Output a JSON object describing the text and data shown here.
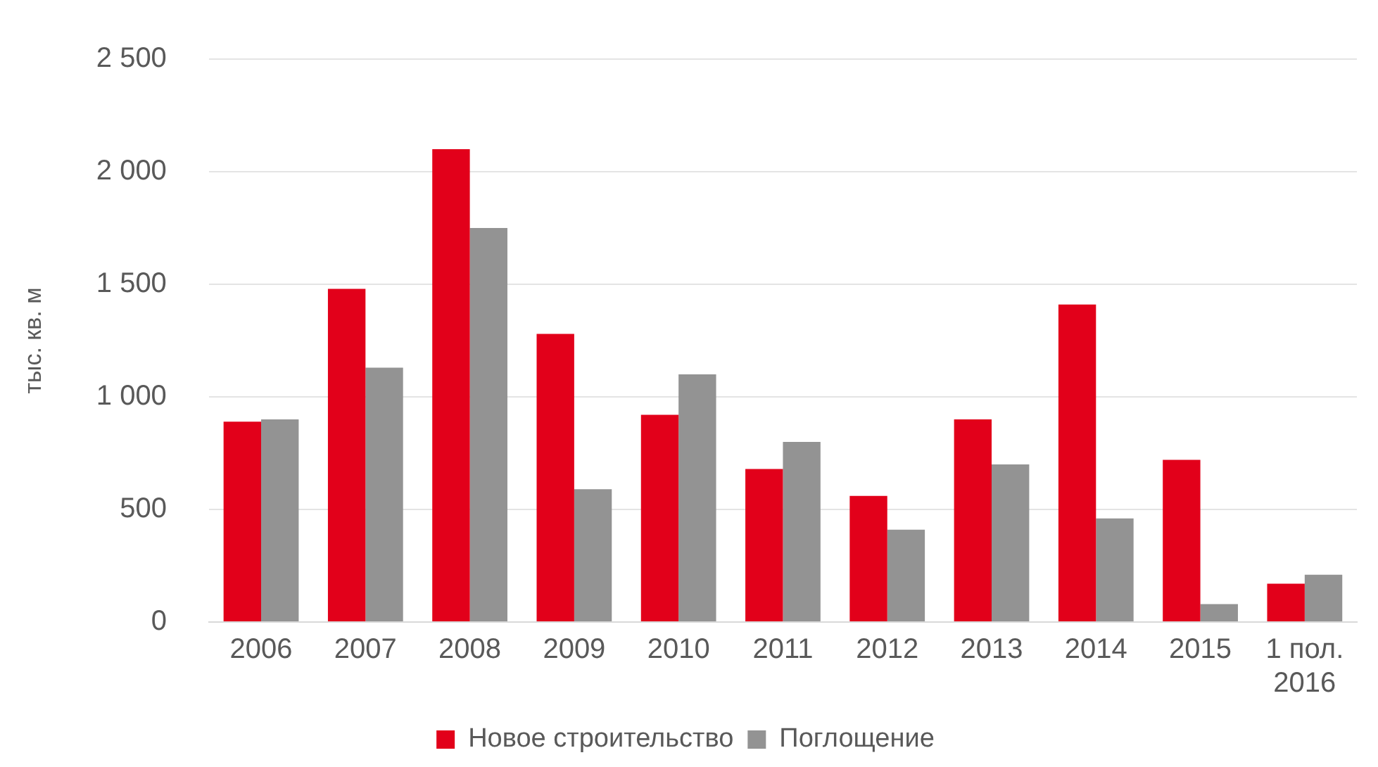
{
  "chart_data": {
    "type": "bar",
    "ylabel": "тыс. кв. м",
    "categories": [
      "2006",
      "2007",
      "2008",
      "2009",
      "2010",
      "2011",
      "2012",
      "2013",
      "2014",
      "2015",
      "1 пол.\n2016"
    ],
    "series": [
      {
        "name": "Новое строительство",
        "color": "#e2001a",
        "values": [
          890,
          1480,
          2100,
          1280,
          920,
          680,
          560,
          900,
          1410,
          720,
          170
        ]
      },
      {
        "name": "Поглощение",
        "color": "#939393",
        "values": [
          900,
          1130,
          1750,
          590,
          1100,
          800,
          410,
          700,
          460,
          80,
          210
        ]
      }
    ],
    "ylim": [
      0,
      2500
    ],
    "yticks": [
      {
        "value": 0,
        "label": "0"
      },
      {
        "value": 500,
        "label": "500"
      },
      {
        "value": 1000,
        "label": "1 000"
      },
      {
        "value": 1500,
        "label": "1 500"
      },
      {
        "value": 2000,
        "label": "2 000"
      },
      {
        "value": 2500,
        "label": "2 500"
      }
    ],
    "grid": "y",
    "legend": "bottom"
  }
}
